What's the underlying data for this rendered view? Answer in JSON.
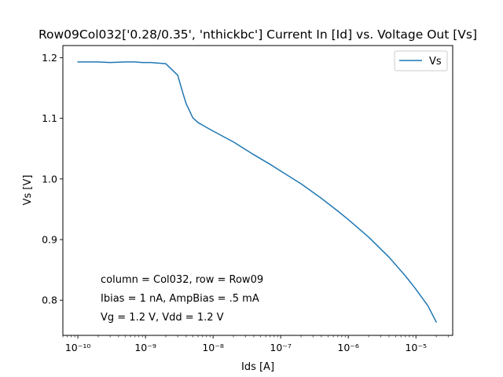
{
  "chart_data": {
    "type": "line",
    "title": "Row09Col032['0.28/0.35', 'nthickbc'] Current In [Id] vs. Voltage Out [Vs]",
    "xlabel": "Ids [A]",
    "ylabel": "Vs [V]",
    "xscale": "log",
    "xlim": [
      6e-11,
      3.5e-05
    ],
    "ylim": [
      0.742,
      1.22
    ],
    "xticks": [
      {
        "value": 1e-10,
        "label": "10⁻¹⁰"
      },
      {
        "value": 1e-09,
        "label": "10⁻⁹"
      },
      {
        "value": 1e-08,
        "label": "10⁻⁸"
      },
      {
        "value": 1e-07,
        "label": "10⁻⁷"
      },
      {
        "value": 1e-06,
        "label": "10⁻⁶"
      },
      {
        "value": 1e-05,
        "label": "10⁻⁵"
      }
    ],
    "yticks": [
      {
        "value": 0.8,
        "label": "0.8"
      },
      {
        "value": 0.9,
        "label": "0.9"
      },
      {
        "value": 1.0,
        "label": "1.0"
      },
      {
        "value": 1.1,
        "label": "1.1"
      },
      {
        "value": 1.2,
        "label": "1.2"
      }
    ],
    "grid": false,
    "legend_position": "upper right",
    "series": [
      {
        "name": "Vs",
        "color": "#1f77b4",
        "x": [
          1e-10,
          2e-10,
          3e-10,
          5e-10,
          7e-10,
          9e-10,
          1.2e-09,
          2e-09,
          3e-09,
          3.5e-09,
          4e-09,
          5e-09,
          6e-09,
          8e-09,
          1e-08,
          2e-08,
          4e-08,
          7e-08,
          1e-07,
          2e-07,
          4e-07,
          7e-07,
          1e-06,
          2e-06,
          4e-06,
          7e-06,
          1e-05,
          1.5e-05,
          2e-05
        ],
        "y": [
          1.193,
          1.193,
          1.192,
          1.193,
          1.193,
          1.192,
          1.192,
          1.19,
          1.171,
          1.145,
          1.124,
          1.101,
          1.093,
          1.085,
          1.079,
          1.061,
          1.04,
          1.024,
          1.013,
          0.992,
          0.968,
          0.947,
          0.933,
          0.904,
          0.871,
          0.84,
          0.818,
          0.791,
          0.764
        ]
      }
    ],
    "annotations": [
      "column = Col032, row = Row09",
      "Ibias = 1 nA, AmpBias = .5 mA",
      "Vg = 1.2 V, Vdd = 1.2 V"
    ]
  }
}
